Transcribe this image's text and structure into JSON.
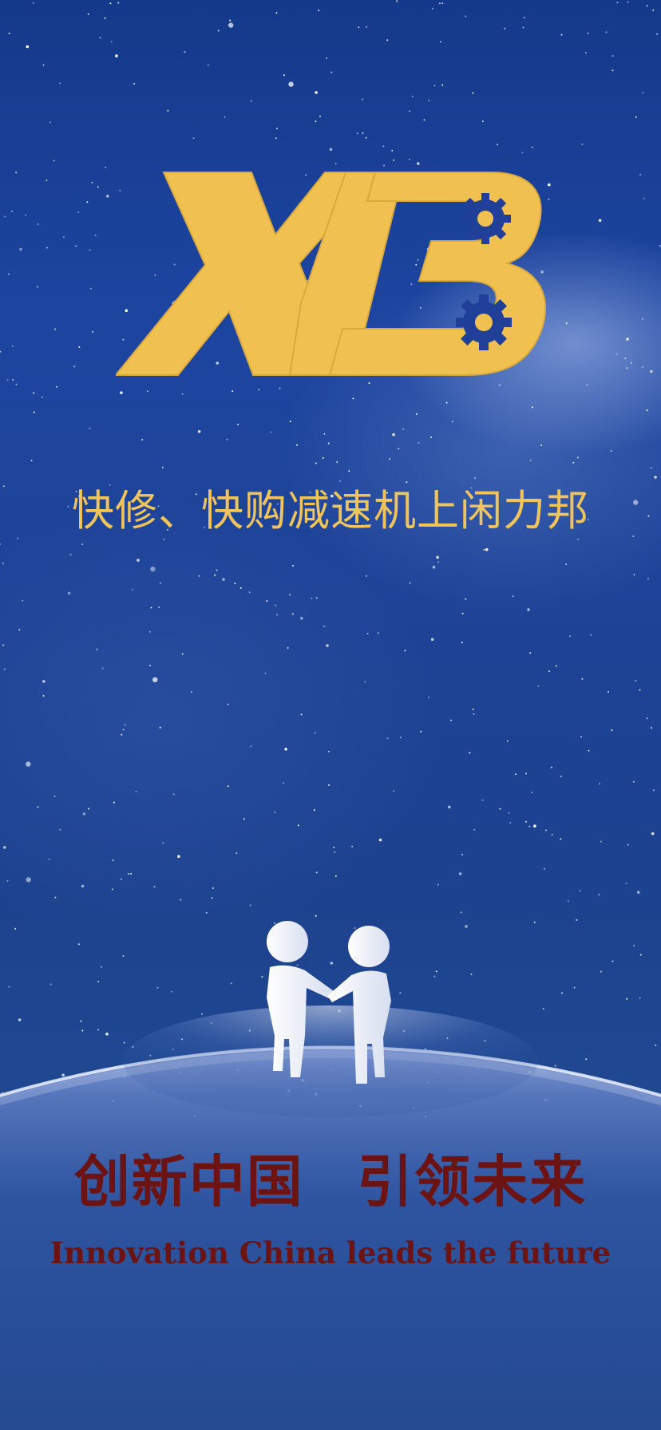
{
  "brand": {
    "logo_text": "XLB",
    "logo_color": "#f0c050",
    "gear_color": "#1f3f99"
  },
  "slogan": {
    "cn": "快修、快购减速机上闲力邦"
  },
  "tagline": {
    "cn": "创新中国   引领未来",
    "en": "Innovation China leads the future"
  },
  "colors": {
    "sky_top": "#15398a",
    "sky_bottom": "#21478d",
    "slogan": "#f0c45a",
    "tagline": "#6b1413"
  },
  "icons": [
    "logo-icon",
    "gear-icon",
    "handshake-figures-icon",
    "planet-horizon"
  ]
}
